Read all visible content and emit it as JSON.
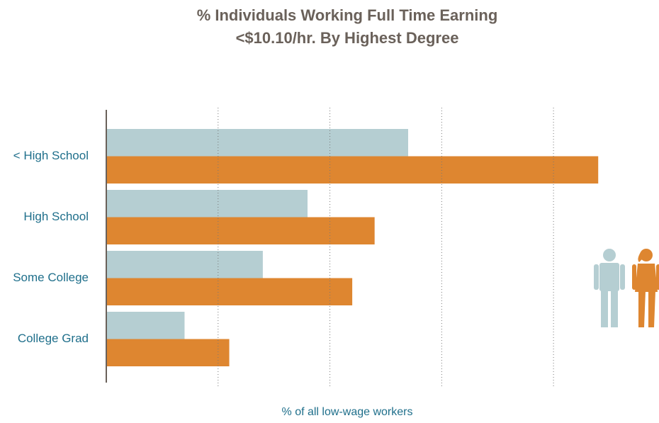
{
  "chart_data": {
    "type": "bar",
    "orientation": "horizontal",
    "title": "% Individuals Working Full Time Earning <$10.10/hr. By Highest Degree",
    "xlabel": "% of all low-wage workers",
    "categories": [
      "< High School",
      "High School",
      "Some College",
      "College Grad"
    ],
    "series": [
      {
        "color": "#b5ced2",
        "values": [
          27,
          18,
          14,
          7
        ],
        "value_labels": [
          "27%",
          "18%",
          "14%",
          "7%"
        ]
      },
      {
        "color": "#de8630",
        "values": [
          44,
          24,
          22,
          11
        ],
        "value_labels": [
          "44%",
          "24%",
          "22%",
          "11%"
        ]
      }
    ],
    "xlim": [
      0,
      45
    ],
    "xticks": [
      10,
      20,
      30,
      40
    ],
    "grid": true
  }
}
